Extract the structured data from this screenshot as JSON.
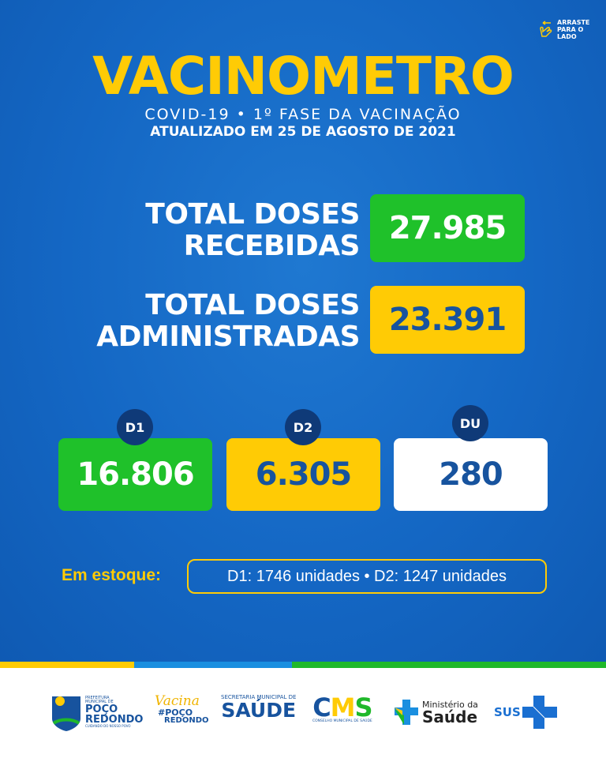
{
  "swipe_hint": {
    "icon": "swipe-hand-icon",
    "text": [
      "ARRASTE",
      "PARA O",
      "LADO"
    ]
  },
  "header": {
    "title": "VACINOMETRO",
    "subtitle": "COVID-19 •  1º FASE DA VACINAÇÃO",
    "updated": "ATUALIZADO EM 25 DE AGOSTO DE 2021"
  },
  "totals": [
    {
      "label_lines": [
        "TOTAL DOSES",
        "RECEBIDAS"
      ],
      "value": "27.985",
      "color": "#1fc12a"
    },
    {
      "label_lines": [
        "TOTAL DOSES",
        "ADMINISTRADAS"
      ],
      "value": "23.391",
      "color": "#ffcb05"
    }
  ],
  "doses": [
    {
      "badge": "D1",
      "value": "16.806",
      "color": "#1fc12a"
    },
    {
      "badge": "D2",
      "value": "6.305",
      "color": "#ffcb05"
    },
    {
      "badge": "DU",
      "value": "280",
      "color": "#ffffff"
    }
  ],
  "stock": {
    "label": "Em estoque:",
    "text": "D1: 1746 unidades • D2: 1247 unidades"
  },
  "footer_logos": [
    {
      "name": "prefeitura-poco-redondo",
      "lines": [
        "PREFEITURA",
        "MUNICIPAL DE",
        "POÇO",
        "REDONDO",
        "CUIDANDO DO NOSSO POVO"
      ]
    },
    {
      "name": "vacina-poco-redondo",
      "lines": [
        "Vacina",
        "#POÇO",
        "REDONDO"
      ]
    },
    {
      "name": "secretaria-saude",
      "lines": [
        "SECRETARIA MUNICIPAL DE",
        "SAÚDE"
      ]
    },
    {
      "name": "cms",
      "lines": [
        "CMS",
        "CONSELHO MUNICIPAL DE SAÚDE"
      ]
    },
    {
      "name": "ministerio-saude",
      "lines": [
        "Ministério da",
        "Saúde"
      ]
    },
    {
      "name": "sus",
      "lines": [
        "SUS"
      ]
    }
  ]
}
